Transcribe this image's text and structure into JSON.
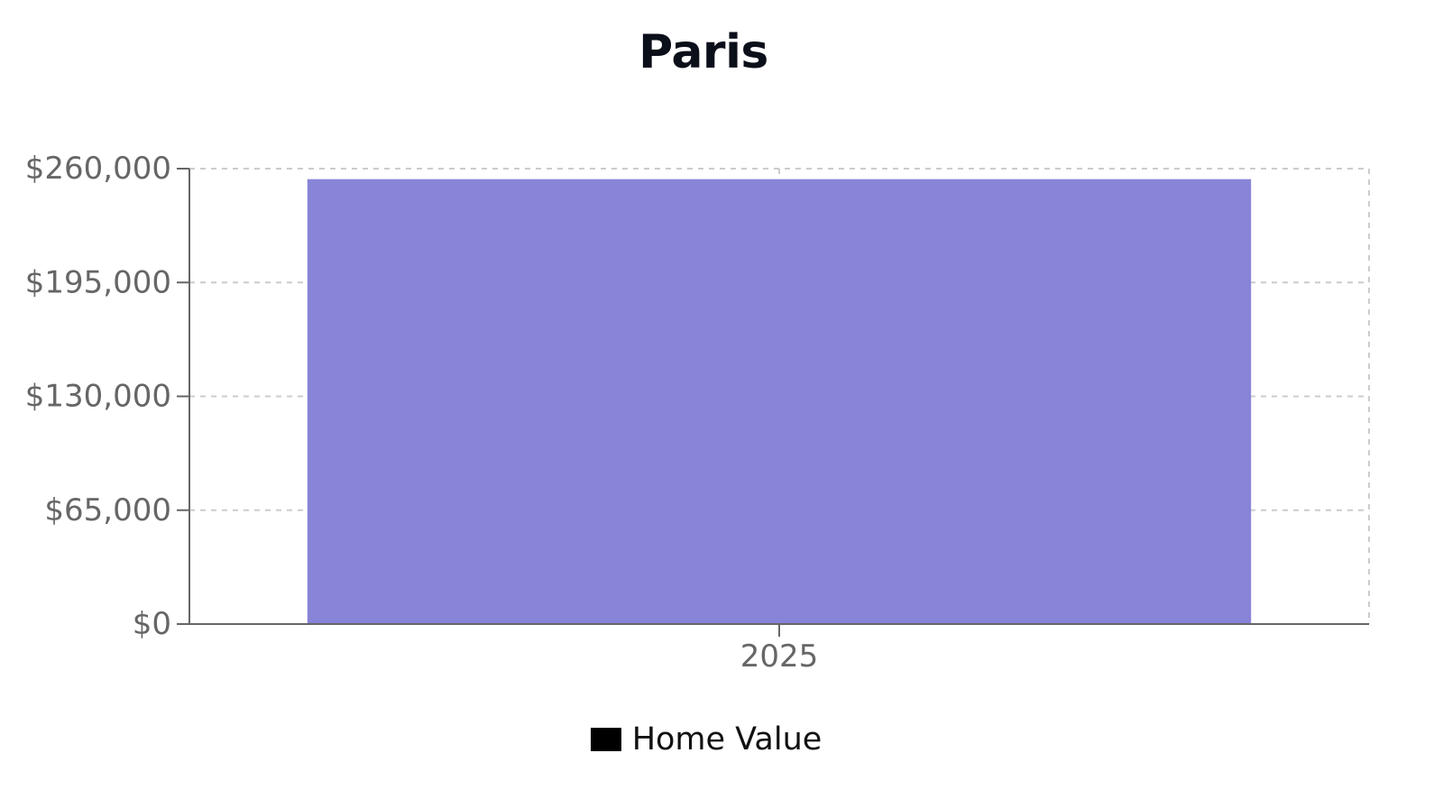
{
  "chart_data": {
    "type": "bar",
    "title": "Paris",
    "categories": [
      "2025"
    ],
    "series": [
      {
        "name": "Home Value",
        "values": [
          254000
        ],
        "color": "#8884d8"
      }
    ],
    "ylim": [
      0,
      260000
    ],
    "yticks": [
      0,
      65000,
      130000,
      195000,
      260000
    ],
    "ytick_labels": [
      "$0",
      "$65,000",
      "$130,000",
      "$195,000",
      "$260,000"
    ],
    "grid": true,
    "legend_placement": "bottom-center",
    "legend_swatch_color": "#000000"
  }
}
